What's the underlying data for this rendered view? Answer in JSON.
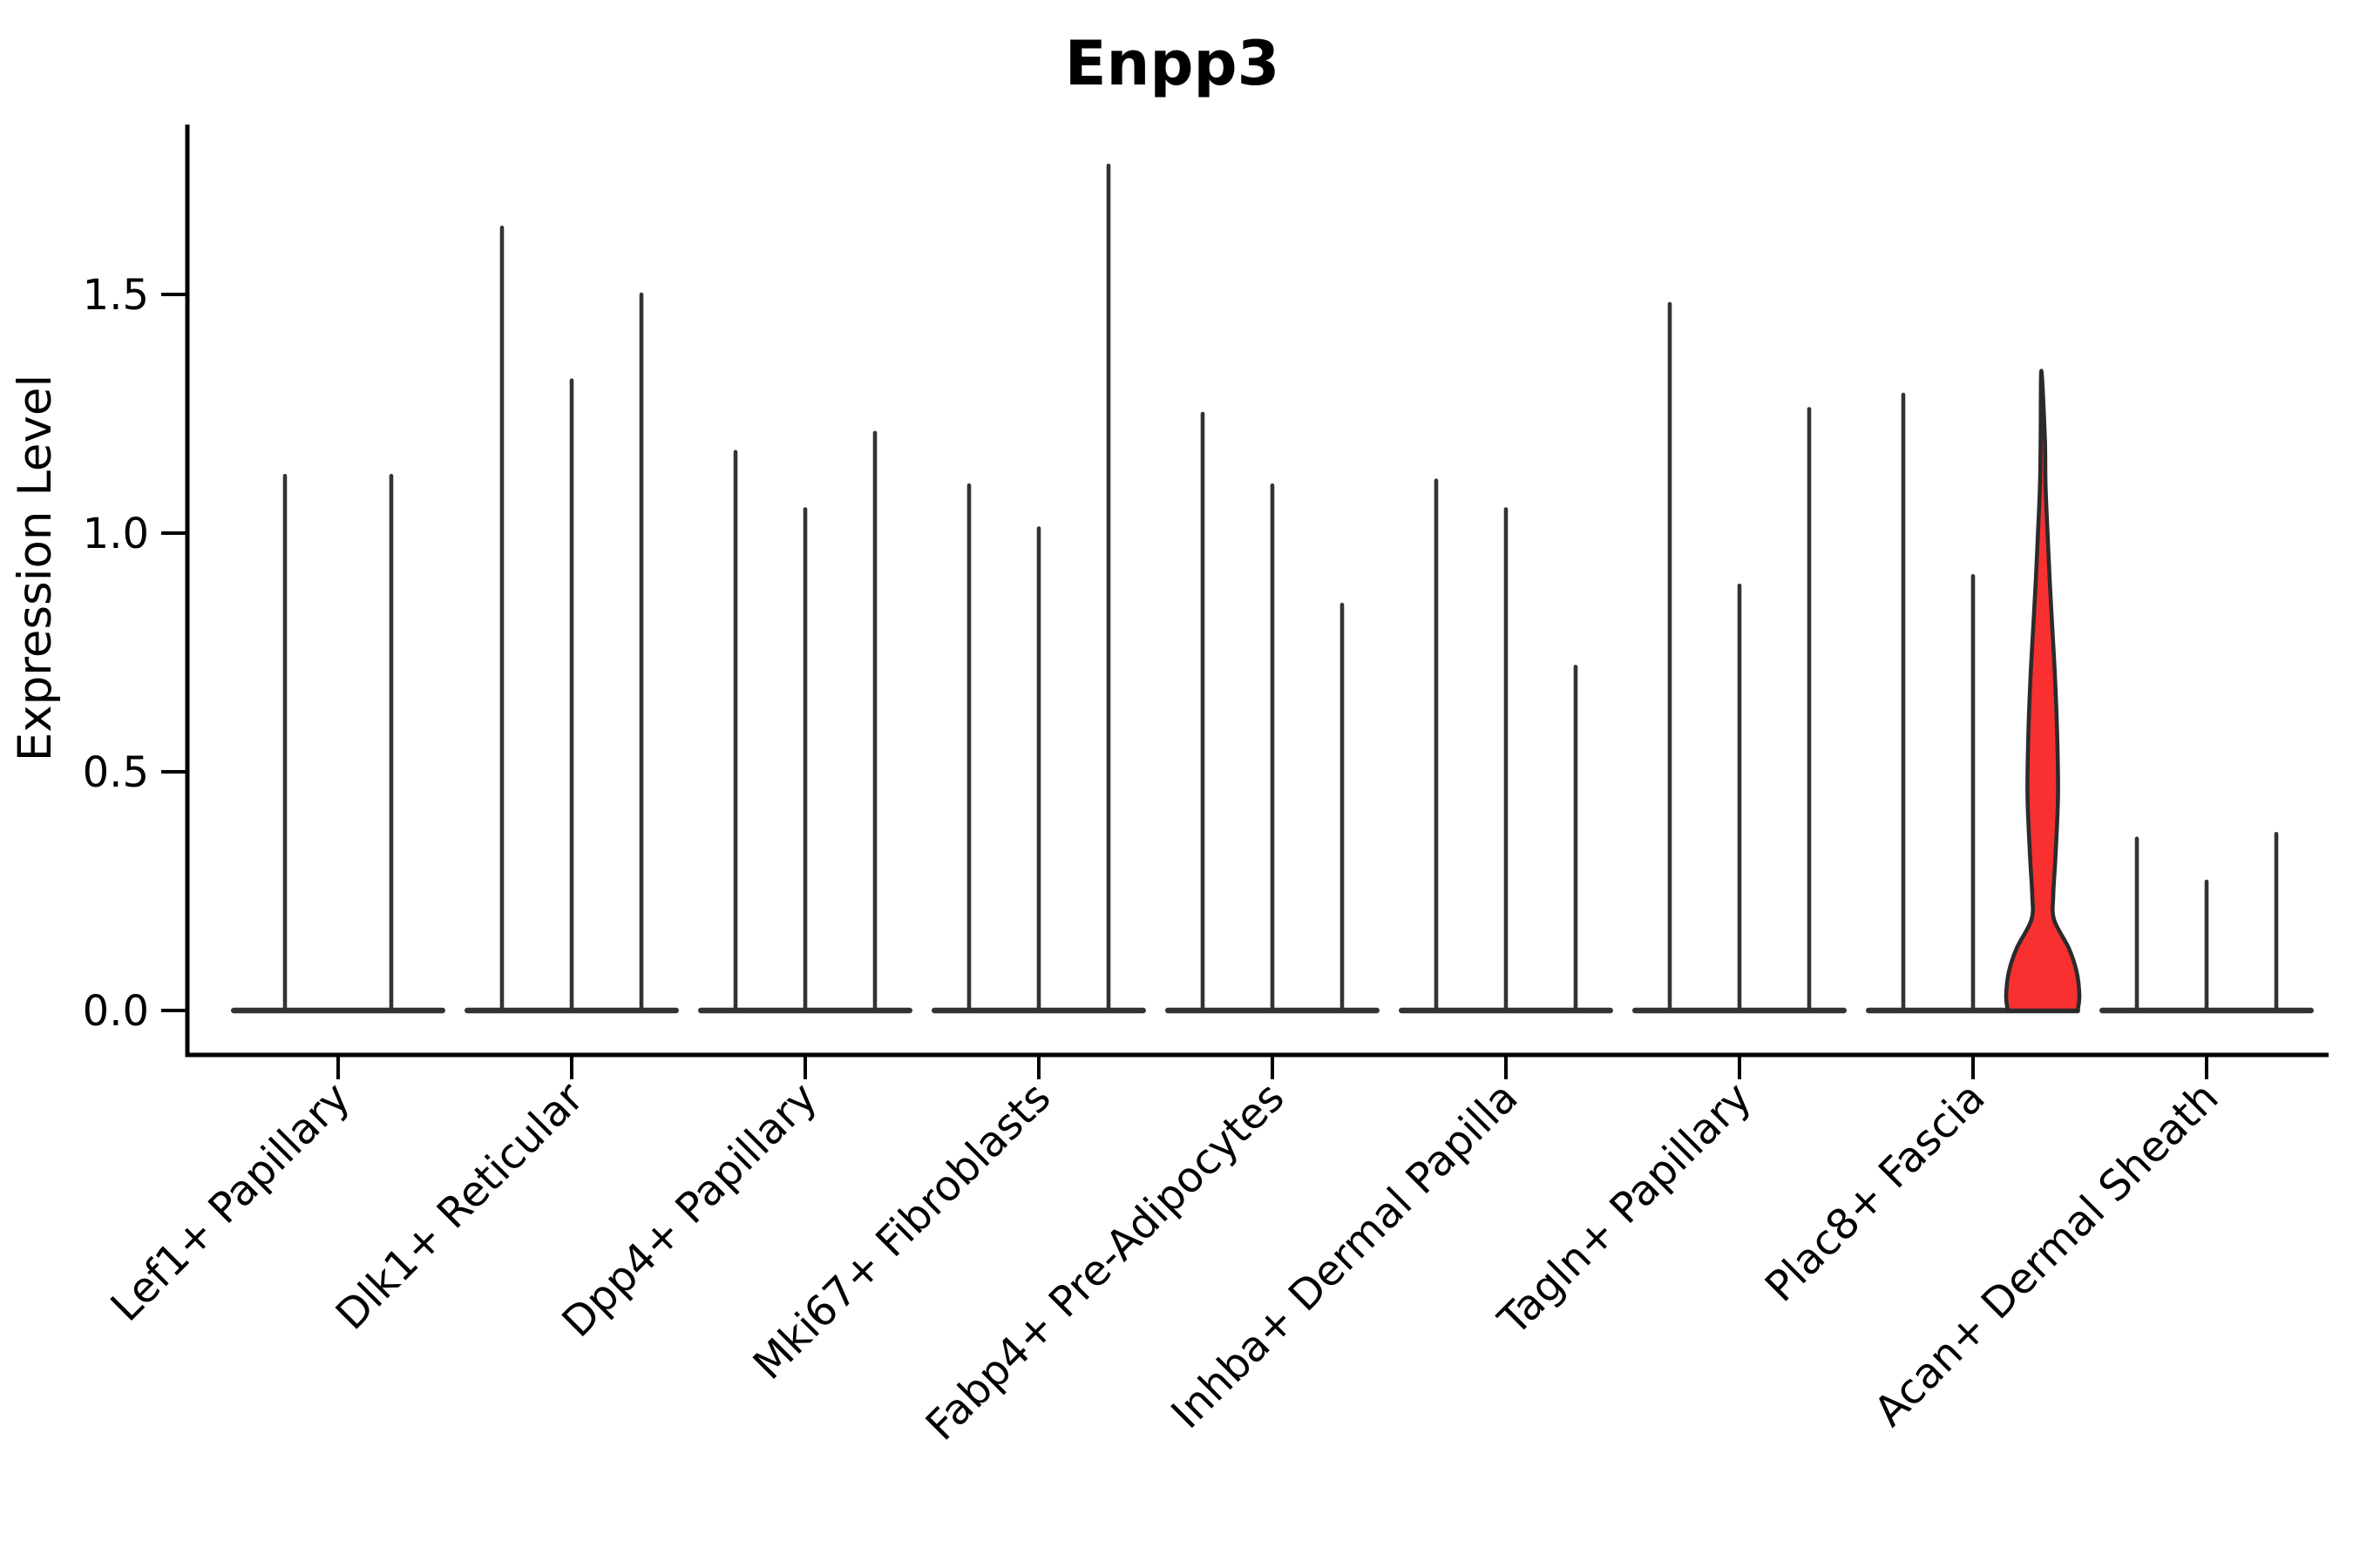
{
  "title": "Enpp3",
  "axes": {
    "ylabel": "Expression Level",
    "ytick_labels": [
      "0.0",
      "0.5",
      "1.0",
      "1.5"
    ]
  },
  "chart_data": {
    "type": "violin",
    "title": "Enpp3",
    "xlabel": "",
    "ylabel": "Expression Level",
    "yticks": [
      0.0,
      0.5,
      1.0,
      1.5
    ],
    "ytick_labels": [
      "0.0",
      "0.5",
      "1.0",
      "1.5"
    ],
    "ylim": [
      -0.09,
      1.86
    ],
    "grid": false,
    "legend": false,
    "x_label_rotation_deg": 45,
    "categories": [
      "Lef1+ Papillary",
      "Dlk1+ Reticular",
      "Dpp4+ Papillary",
      "Mki67+ Fibroblasts",
      "Fabp4+ Pre-Adipocytes",
      "Inhba+ Dermal Papilla",
      "Tagln+ Papillary",
      "Plac8+ Fascia",
      "Acan+ Dermal Sheath"
    ],
    "series": [
      {
        "category": "Lef1+ Papillary",
        "violins": [
          {
            "shape": "spike",
            "max": 1.12
          },
          {
            "shape": "spike",
            "max": 1.12
          }
        ]
      },
      {
        "category": "Dlk1+ Reticular",
        "violins": [
          {
            "shape": "spike",
            "max": 1.64
          },
          {
            "shape": "spike",
            "max": 1.32
          },
          {
            "shape": "spike",
            "max": 1.5
          }
        ]
      },
      {
        "category": "Dpp4+ Papillary",
        "violins": [
          {
            "shape": "spike",
            "max": 1.17
          },
          {
            "shape": "spike",
            "max": 1.05
          },
          {
            "shape": "spike",
            "max": 1.21
          }
        ]
      },
      {
        "category": "Mki67+ Fibroblasts",
        "violins": [
          {
            "shape": "spike",
            "max": 1.1
          },
          {
            "shape": "spike",
            "max": 1.01
          },
          {
            "shape": "spike",
            "max": 1.77
          }
        ]
      },
      {
        "category": "Fabp4+ Pre-Adipocytes",
        "violins": [
          {
            "shape": "spike",
            "max": 1.25
          },
          {
            "shape": "spike",
            "max": 1.1
          },
          {
            "shape": "spike",
            "max": 0.85
          }
        ]
      },
      {
        "category": "Inhba+ Dermal Papilla",
        "violins": [
          {
            "shape": "spike",
            "max": 1.11
          },
          {
            "shape": "spike",
            "max": 1.05
          },
          {
            "shape": "spike",
            "max": 0.72
          }
        ]
      },
      {
        "category": "Tagln+ Papillary",
        "violins": [
          {
            "shape": "spike",
            "max": 1.48
          },
          {
            "shape": "spike",
            "max": 0.89
          },
          {
            "shape": "spike",
            "max": 1.26
          }
        ]
      },
      {
        "category": "Plac8+ Fascia",
        "violins": [
          {
            "shape": "spike",
            "max": 1.29
          },
          {
            "shape": "spike",
            "max": 0.91
          },
          {
            "shape": "violin",
            "max": 1.34,
            "highlighted": true,
            "fill": "#f83030",
            "profile": [
              [
                0.0,
                40
              ],
              [
                0.03,
                42
              ],
              [
                0.08,
                39
              ],
              [
                0.13,
                30
              ],
              [
                0.19,
                13
              ],
              [
                0.24,
                12
              ],
              [
                0.32,
                14.5
              ],
              [
                0.45,
                17.5
              ],
              [
                0.58,
                16.5
              ],
              [
                0.7,
                14
              ],
              [
                0.8,
                11
              ],
              [
                0.9,
                8
              ],
              [
                1.0,
                5.5
              ],
              [
                1.1,
                3.2
              ],
              [
                1.2,
                2.4
              ],
              [
                1.34,
                1.6
              ]
            ]
          }
        ]
      },
      {
        "category": "Acan+ Dermal Sheath",
        "violins": [
          {
            "shape": "spike",
            "max": 0.36
          },
          {
            "shape": "spike",
            "max": 0.27
          },
          {
            "shape": "spike",
            "max": 0.37
          }
        ]
      }
    ],
    "colors": {
      "spike": "#333333",
      "violin_stroke": "#2b2b2b",
      "highlight_fill": "#f83030",
      "axis": "#000000",
      "text": "#000000",
      "background": "#ffffff"
    }
  }
}
